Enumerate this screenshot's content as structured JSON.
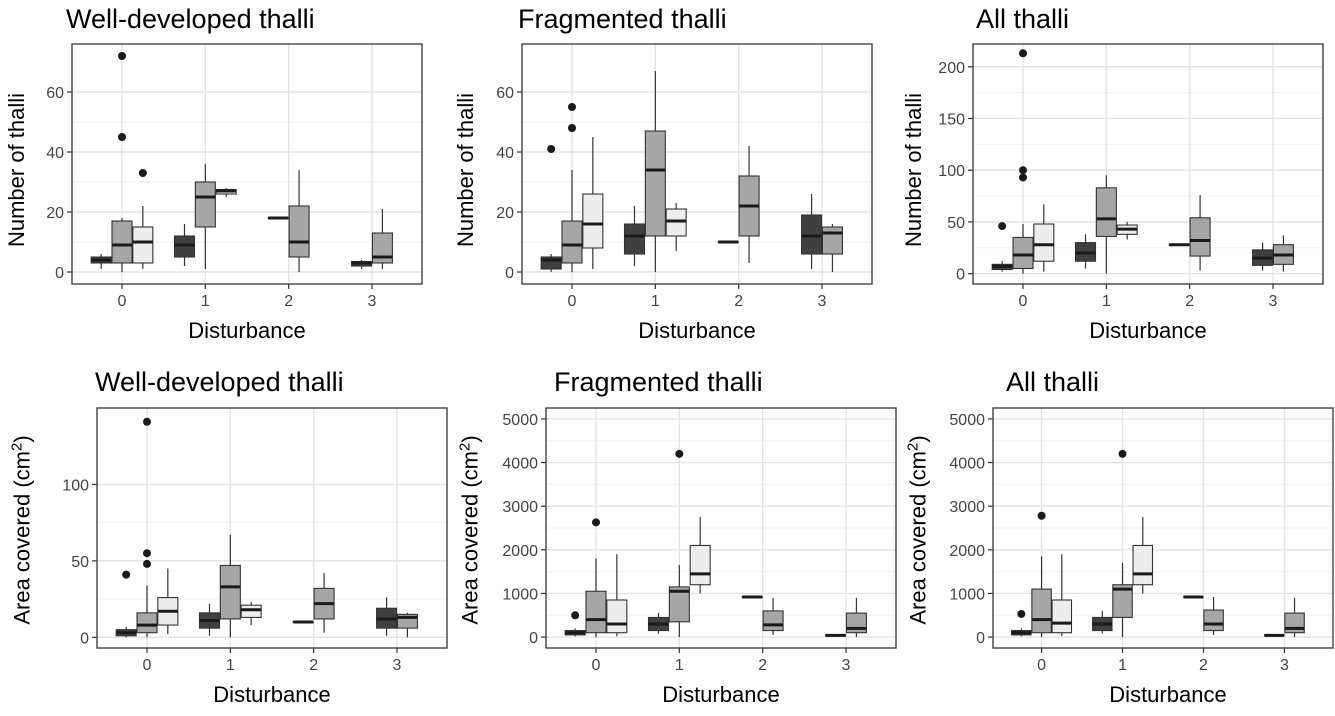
{
  "styles": {
    "group_fills": [
      "#404040",
      "#a6a6a6",
      "#ededed"
    ],
    "panel_border": "#333333",
    "grid_major": "#e3e3e3",
    "grid_minor": "#f2f2f2"
  },
  "chart_data": [
    {
      "type": "boxplot",
      "title": "Well-developed thalli",
      "xlabel": "Disturbance",
      "ylabel": "Number of thalli",
      "ylabel_sup": "",
      "ylabel_tail": "",
      "categories": [
        "0",
        "1",
        "2",
        "3"
      ],
      "yticks": [
        0,
        20,
        40,
        60
      ],
      "ylim": [
        -4,
        76
      ],
      "boxes": [
        {
          "x": "0",
          "group": 0,
          "low": 1,
          "q1": 3,
          "median": 4,
          "q3": 5,
          "high": 6,
          "outliers": []
        },
        {
          "x": "0",
          "group": 1,
          "low": 0,
          "q1": 3,
          "median": 9,
          "q3": 17,
          "high": 18,
          "outliers": [
            45,
            72
          ]
        },
        {
          "x": "0",
          "group": 2,
          "low": 1,
          "q1": 3,
          "median": 10,
          "q3": 15,
          "high": 22,
          "outliers": [
            33
          ]
        },
        {
          "x": "1",
          "group": 0,
          "low": 2,
          "q1": 5,
          "median": 9,
          "q3": 12,
          "high": 16,
          "outliers": []
        },
        {
          "x": "1",
          "group": 1,
          "low": 1,
          "q1": 15,
          "median": 25,
          "q3": 30,
          "high": 36,
          "outliers": []
        },
        {
          "x": "1",
          "group": 2,
          "low": 25,
          "q1": 26,
          "median": 27,
          "q3": 27.5,
          "high": 28,
          "outliers": []
        },
        {
          "x": "2",
          "group": 0,
          "low": 18,
          "q1": 18,
          "median": 18,
          "q3": 18,
          "high": 18,
          "outliers": []
        },
        {
          "x": "2",
          "group": 1,
          "low": 0,
          "q1": 5,
          "median": 10,
          "q3": 22,
          "high": 34,
          "outliers": []
        },
        {
          "x": "3",
          "group": 0,
          "low": 1,
          "q1": 2,
          "median": 3,
          "q3": 3.5,
          "high": 4,
          "outliers": []
        },
        {
          "x": "3",
          "group": 1,
          "low": 1,
          "q1": 3,
          "median": 5,
          "q3": 13,
          "high": 21,
          "outliers": []
        }
      ]
    },
    {
      "type": "boxplot",
      "title": "Fragmented thalli",
      "xlabel": "Disturbance",
      "ylabel": "Number of thalli",
      "ylabel_sup": "",
      "ylabel_tail": "",
      "categories": [
        "0",
        "1",
        "2",
        "3"
      ],
      "yticks": [
        0,
        20,
        40,
        60
      ],
      "ylim": [
        -4,
        76
      ],
      "boxes": [
        {
          "x": "0",
          "group": 0,
          "low": 0,
          "q1": 1,
          "median": 4,
          "q3": 5,
          "high": 6,
          "outliers": [
            41
          ]
        },
        {
          "x": "0",
          "group": 1,
          "low": 0,
          "q1": 3,
          "median": 9,
          "q3": 17,
          "high": 34,
          "outliers": [
            48,
            55
          ]
        },
        {
          "x": "0",
          "group": 2,
          "low": 1,
          "q1": 8,
          "median": 16,
          "q3": 26,
          "high": 45,
          "outliers": []
        },
        {
          "x": "1",
          "group": 0,
          "low": 2,
          "q1": 6,
          "median": 12,
          "q3": 16,
          "high": 22,
          "outliers": []
        },
        {
          "x": "1",
          "group": 1,
          "low": 0,
          "q1": 12,
          "median": 34,
          "q3": 47,
          "high": 67,
          "outliers": []
        },
        {
          "x": "1",
          "group": 2,
          "low": 7,
          "q1": 12,
          "median": 17,
          "q3": 21,
          "high": 23,
          "outliers": []
        },
        {
          "x": "2",
          "group": 0,
          "low": 10,
          "q1": 10,
          "median": 10,
          "q3": 10,
          "high": 10,
          "outliers": []
        },
        {
          "x": "2",
          "group": 1,
          "low": 3,
          "q1": 12,
          "median": 22,
          "q3": 32,
          "high": 42,
          "outliers": []
        },
        {
          "x": "3",
          "group": 0,
          "low": 1,
          "q1": 6,
          "median": 12,
          "q3": 19,
          "high": 26,
          "outliers": []
        },
        {
          "x": "3",
          "group": 1,
          "low": 0,
          "q1": 6,
          "median": 13,
          "q3": 15,
          "high": 16,
          "outliers": []
        }
      ]
    },
    {
      "type": "boxplot",
      "title": "All thalli",
      "xlabel": "Disturbance",
      "ylabel": "Number of thalli",
      "ylabel_sup": "",
      "ylabel_tail": "",
      "categories": [
        "0",
        "1",
        "2",
        "3"
      ],
      "yticks": [
        0,
        50,
        100,
        150,
        200
      ],
      "ylim": [
        -10,
        222
      ],
      "boxes": [
        {
          "x": "0",
          "group": 0,
          "low": 2,
          "q1": 4,
          "median": 7,
          "q3": 9,
          "high": 12,
          "outliers": [
            46
          ]
        },
        {
          "x": "0",
          "group": 1,
          "low": 0,
          "q1": 5,
          "median": 18,
          "q3": 35,
          "high": 48,
          "outliers": [
            93,
            100,
            213
          ]
        },
        {
          "x": "0",
          "group": 2,
          "low": 2,
          "q1": 12,
          "median": 28,
          "q3": 48,
          "high": 67,
          "outliers": []
        },
        {
          "x": "1",
          "group": 0,
          "low": 5,
          "q1": 12,
          "median": 20,
          "q3": 30,
          "high": 38,
          "outliers": []
        },
        {
          "x": "1",
          "group": 1,
          "low": 0,
          "q1": 36,
          "median": 53,
          "q3": 83,
          "high": 95,
          "outliers": []
        },
        {
          "x": "1",
          "group": 2,
          "low": 33,
          "q1": 38,
          "median": 43,
          "q3": 47,
          "high": 50,
          "outliers": []
        },
        {
          "x": "2",
          "group": 0,
          "low": 28,
          "q1": 28,
          "median": 28,
          "q3": 28,
          "high": 28,
          "outliers": []
        },
        {
          "x": "2",
          "group": 1,
          "low": 3,
          "q1": 17,
          "median": 32,
          "q3": 54,
          "high": 76,
          "outliers": []
        },
        {
          "x": "3",
          "group": 0,
          "low": 3,
          "q1": 8,
          "median": 15,
          "q3": 23,
          "high": 30,
          "outliers": []
        },
        {
          "x": "3",
          "group": 1,
          "low": 2,
          "q1": 9,
          "median": 18,
          "q3": 28,
          "high": 37,
          "outliers": []
        }
      ]
    },
    {
      "type": "boxplot",
      "title": "Well-developed thalli",
      "xlabel": "Disturbance",
      "ylabel": "Area covered (cm",
      "ylabel_sup": "2",
      "ylabel_tail": ")",
      "categories": [
        "0",
        "1",
        "2",
        "3"
      ],
      "yticks": [
        0,
        50,
        100
      ],
      "ylim": [
        -7,
        150
      ],
      "boxes": [
        {
          "x": "0",
          "group": 0,
          "low": 0,
          "q1": 1,
          "median": 3,
          "q3": 5,
          "high": 7,
          "outliers": [
            41
          ]
        },
        {
          "x": "0",
          "group": 1,
          "low": 0,
          "q1": 3,
          "median": 8,
          "q3": 16,
          "high": 34,
          "outliers": [
            48,
            55,
            141
          ]
        },
        {
          "x": "0",
          "group": 2,
          "low": 2,
          "q1": 8,
          "median": 17,
          "q3": 26,
          "high": 45,
          "outliers": []
        },
        {
          "x": "1",
          "group": 0,
          "low": 1,
          "q1": 6,
          "median": 11,
          "q3": 16,
          "high": 22,
          "outliers": []
        },
        {
          "x": "1",
          "group": 1,
          "low": 0,
          "q1": 12,
          "median": 33,
          "q3": 47,
          "high": 67,
          "outliers": []
        },
        {
          "x": "1",
          "group": 2,
          "low": 8,
          "q1": 13,
          "median": 18,
          "q3": 21,
          "high": 23,
          "outliers": []
        },
        {
          "x": "2",
          "group": 0,
          "low": 10,
          "q1": 10,
          "median": 10,
          "q3": 10,
          "high": 10,
          "outliers": []
        },
        {
          "x": "2",
          "group": 1,
          "low": 3,
          "q1": 12,
          "median": 22,
          "q3": 32,
          "high": 42,
          "outliers": []
        },
        {
          "x": "3",
          "group": 0,
          "low": 1,
          "q1": 6,
          "median": 12,
          "q3": 19,
          "high": 26,
          "outliers": []
        },
        {
          "x": "3",
          "group": 1,
          "low": 0,
          "q1": 6,
          "median": 13,
          "q3": 15,
          "high": 16,
          "outliers": []
        }
      ]
    },
    {
      "type": "boxplot",
      "title": "Fragmented thalli",
      "xlabel": "Disturbance",
      "ylabel": "Area covered (cm",
      "ylabel_sup": "2",
      "ylabel_tail": ")",
      "categories": [
        "0",
        "1",
        "2",
        "3"
      ],
      "yticks": [
        0,
        1000,
        2000,
        3000,
        4000,
        5000
      ],
      "ylim": [
        -250,
        5250
      ],
      "boxes": [
        {
          "x": "0",
          "group": 0,
          "low": 20,
          "q1": 50,
          "median": 100,
          "q3": 150,
          "high": 200,
          "outliers": [
            500
          ]
        },
        {
          "x": "0",
          "group": 1,
          "low": 0,
          "q1": 100,
          "median": 400,
          "q3": 1050,
          "high": 1800,
          "outliers": [
            2630
          ]
        },
        {
          "x": "0",
          "group": 2,
          "low": 20,
          "q1": 100,
          "median": 300,
          "q3": 850,
          "high": 1900,
          "outliers": []
        },
        {
          "x": "1",
          "group": 0,
          "low": 80,
          "q1": 150,
          "median": 300,
          "q3": 450,
          "high": 550,
          "outliers": []
        },
        {
          "x": "1",
          "group": 1,
          "low": 0,
          "q1": 350,
          "median": 1050,
          "q3": 1150,
          "high": 1650,
          "outliers": [
            4200
          ]
        },
        {
          "x": "1",
          "group": 2,
          "low": 1000,
          "q1": 1200,
          "median": 1450,
          "q3": 2100,
          "high": 2750,
          "outliers": []
        },
        {
          "x": "2",
          "group": 0,
          "low": 920,
          "q1": 920,
          "median": 920,
          "q3": 920,
          "high": 920,
          "outliers": []
        },
        {
          "x": "2",
          "group": 1,
          "low": 50,
          "q1": 150,
          "median": 280,
          "q3": 600,
          "high": 900,
          "outliers": []
        },
        {
          "x": "3",
          "group": 0,
          "low": 20,
          "q1": 30,
          "median": 40,
          "q3": 50,
          "high": 60,
          "outliers": []
        },
        {
          "x": "3",
          "group": 1,
          "low": 0,
          "q1": 100,
          "median": 200,
          "q3": 550,
          "high": 900,
          "outliers": []
        }
      ]
    },
    {
      "type": "boxplot",
      "title": "All thalli",
      "xlabel": "Disturbance",
      "ylabel": "Area covered (cm",
      "ylabel_sup": "2",
      "ylabel_tail": ")",
      "categories": [
        "0",
        "1",
        "2",
        "3"
      ],
      "yticks": [
        0,
        1000,
        2000,
        3000,
        4000,
        5000
      ],
      "ylim": [
        -250,
        5250
      ],
      "boxes": [
        {
          "x": "0",
          "group": 0,
          "low": 20,
          "q1": 50,
          "median": 100,
          "q3": 150,
          "high": 200,
          "outliers": [
            530
          ]
        },
        {
          "x": "0",
          "group": 1,
          "low": 0,
          "q1": 100,
          "median": 400,
          "q3": 1100,
          "high": 1850,
          "outliers": [
            2780
          ]
        },
        {
          "x": "0",
          "group": 2,
          "low": 20,
          "q1": 100,
          "median": 320,
          "q3": 850,
          "high": 1900,
          "outliers": []
        },
        {
          "x": "1",
          "group": 0,
          "low": 80,
          "q1": 150,
          "median": 300,
          "q3": 450,
          "high": 600,
          "outliers": []
        },
        {
          "x": "1",
          "group": 1,
          "low": 0,
          "q1": 450,
          "median": 1100,
          "q3": 1200,
          "high": 1700,
          "outliers": [
            4200
          ]
        },
        {
          "x": "1",
          "group": 2,
          "low": 1000,
          "q1": 1200,
          "median": 1450,
          "q3": 2100,
          "high": 2750,
          "outliers": []
        },
        {
          "x": "2",
          "group": 0,
          "low": 920,
          "q1": 920,
          "median": 920,
          "q3": 920,
          "high": 920,
          "outliers": []
        },
        {
          "x": "2",
          "group": 1,
          "low": 50,
          "q1": 150,
          "median": 300,
          "q3": 620,
          "high": 920,
          "outliers": []
        },
        {
          "x": "3",
          "group": 0,
          "low": 20,
          "q1": 30,
          "median": 40,
          "q3": 50,
          "high": 60,
          "outliers": []
        },
        {
          "x": "3",
          "group": 1,
          "low": 0,
          "q1": 100,
          "median": 200,
          "q3": 550,
          "high": 900,
          "outliers": []
        }
      ]
    }
  ]
}
